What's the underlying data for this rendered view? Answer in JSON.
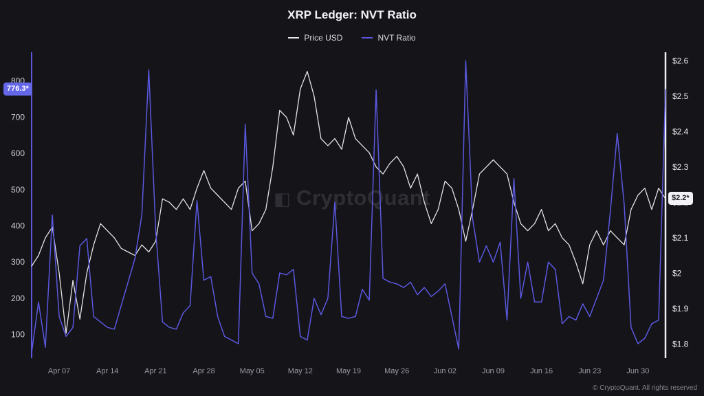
{
  "page": {
    "title": "XRP Ledger: NVT Ratio",
    "watermark": "CryptoQuant",
    "copyright": "© CryptoQuant. All rights reserved"
  },
  "legend": [
    {
      "label": "Price USD",
      "color": "#e4e4e8"
    },
    {
      "label": "NVT Ratio",
      "color": "#5b58df"
    }
  ],
  "badges": {
    "left": "776.3*",
    "right": "$2.2*"
  },
  "chart_data": {
    "type": "line",
    "title": "XRP Ledger: NVT Ratio",
    "grid": false,
    "legend_position": "top",
    "background_color": "#141419",
    "x": [
      "Apr 03",
      "Apr 04",
      "Apr 05",
      "Apr 06",
      "Apr 07",
      "Apr 08",
      "Apr 09",
      "Apr 10",
      "Apr 11",
      "Apr 12",
      "Apr 13",
      "Apr 14",
      "Apr 15",
      "Apr 16",
      "Apr 17",
      "Apr 18",
      "Apr 19",
      "Apr 20",
      "Apr 21",
      "Apr 22",
      "Apr 23",
      "Apr 24",
      "Apr 25",
      "Apr 26",
      "Apr 27",
      "Apr 28",
      "Apr 29",
      "Apr 30",
      "May 01",
      "May 02",
      "May 03",
      "May 04",
      "May 05",
      "May 06",
      "May 07",
      "May 08",
      "May 09",
      "May 10",
      "May 11",
      "May 12",
      "May 13",
      "May 14",
      "May 15",
      "May 16",
      "May 17",
      "May 18",
      "May 19",
      "May 20",
      "May 21",
      "May 22",
      "May 23",
      "May 24",
      "May 25",
      "May 26",
      "May 27",
      "May 28",
      "May 29",
      "May 30",
      "May 31",
      "Jun 01",
      "Jun 02",
      "Jun 03",
      "Jun 04",
      "Jun 05",
      "Jun 06",
      "Jun 07",
      "Jun 08",
      "Jun 09",
      "Jun 10",
      "Jun 11",
      "Jun 12",
      "Jun 13",
      "Jun 14",
      "Jun 15",
      "Jun 16",
      "Jun 17",
      "Jun 18",
      "Jun 19",
      "Jun 20",
      "Jun 21",
      "Jun 22",
      "Jun 23",
      "Jun 24",
      "Jun 25",
      "Jun 26",
      "Jun 27",
      "Jun 28",
      "Jun 29",
      "Jun 30",
      "Jul 01",
      "Jul 02",
      "Jul 03",
      "Jul 04"
    ],
    "x_tick_labels": [
      "Apr 07",
      "Apr 14",
      "Apr 21",
      "Apr 28",
      "May 05",
      "May 12",
      "May 19",
      "May 26",
      "Jun 02",
      "Jun 09",
      "Jun 16",
      "Jun 23",
      "Jun 30"
    ],
    "series": [
      {
        "name": "Price USD",
        "axis": "right",
        "color": "#e4e4e8",
        "values": [
          2.02,
          2.05,
          2.1,
          2.13,
          2.0,
          1.83,
          1.98,
          1.87,
          2.0,
          2.08,
          2.14,
          2.12,
          2.1,
          2.07,
          2.06,
          2.05,
          2.08,
          2.06,
          2.09,
          2.21,
          2.2,
          2.18,
          2.21,
          2.18,
          2.24,
          2.29,
          2.24,
          2.22,
          2.2,
          2.18,
          2.24,
          2.26,
          2.12,
          2.14,
          2.18,
          2.3,
          2.46,
          2.44,
          2.39,
          2.52,
          2.57,
          2.5,
          2.38,
          2.36,
          2.38,
          2.35,
          2.44,
          2.38,
          2.36,
          2.34,
          2.3,
          2.28,
          2.31,
          2.33,
          2.3,
          2.24,
          2.28,
          2.2,
          2.14,
          2.18,
          2.26,
          2.24,
          2.18,
          2.09,
          2.18,
          2.28,
          2.3,
          2.32,
          2.3,
          2.28,
          2.2,
          2.14,
          2.12,
          2.14,
          2.18,
          2.12,
          2.14,
          2.1,
          2.08,
          2.03,
          1.97,
          2.08,
          2.12,
          2.08,
          2.12,
          2.1,
          2.08,
          2.18,
          2.22,
          2.24,
          2.18,
          2.24,
          2.21
        ]
      },
      {
        "name": "NVT Ratio",
        "axis": "left",
        "color": "#5b58df",
        "values": [
          50,
          190,
          65,
          430,
          150,
          95,
          120,
          345,
          365,
          150,
          135,
          120,
          115,
          180,
          245,
          310,
          430,
          830,
          390,
          135,
          120,
          115,
          160,
          180,
          470,
          250,
          260,
          150,
          95,
          85,
          75,
          680,
          270,
          240,
          150,
          145,
          270,
          265,
          280,
          95,
          85,
          200,
          155,
          200,
          465,
          150,
          145,
          150,
          225,
          195,
          775,
          255,
          245,
          240,
          230,
          245,
          210,
          230,
          205,
          220,
          240,
          150,
          60,
          855,
          420,
          300,
          345,
          300,
          355,
          140,
          530,
          200,
          300,
          190,
          190,
          300,
          280,
          130,
          150,
          140,
          185,
          150,
          200,
          250,
          440,
          655,
          460,
          120,
          75,
          90,
          130,
          140,
          776.3
        ]
      }
    ],
    "left_axis": {
      "label": "NVT Ratio",
      "ticks": [
        800,
        700,
        600,
        500,
        400,
        300,
        200,
        100
      ],
      "range": [
        35,
        875
      ],
      "last_value": 776.3,
      "axis_color": "#5b58df"
    },
    "right_axis": {
      "label": "Price USD",
      "ticks": [
        "$2.6",
        "$2.5",
        "$2.4",
        "$2.3",
        "$2.2",
        "$2.1",
        "$2",
        "$1.9",
        "$1.8"
      ],
      "tick_values": [
        2.6,
        2.5,
        2.4,
        2.3,
        2.2,
        2.1,
        2.0,
        1.9,
        1.8
      ],
      "range": [
        1.76,
        2.62
      ],
      "last_value": 2.21,
      "axis_color": "#f1f1f5"
    }
  }
}
